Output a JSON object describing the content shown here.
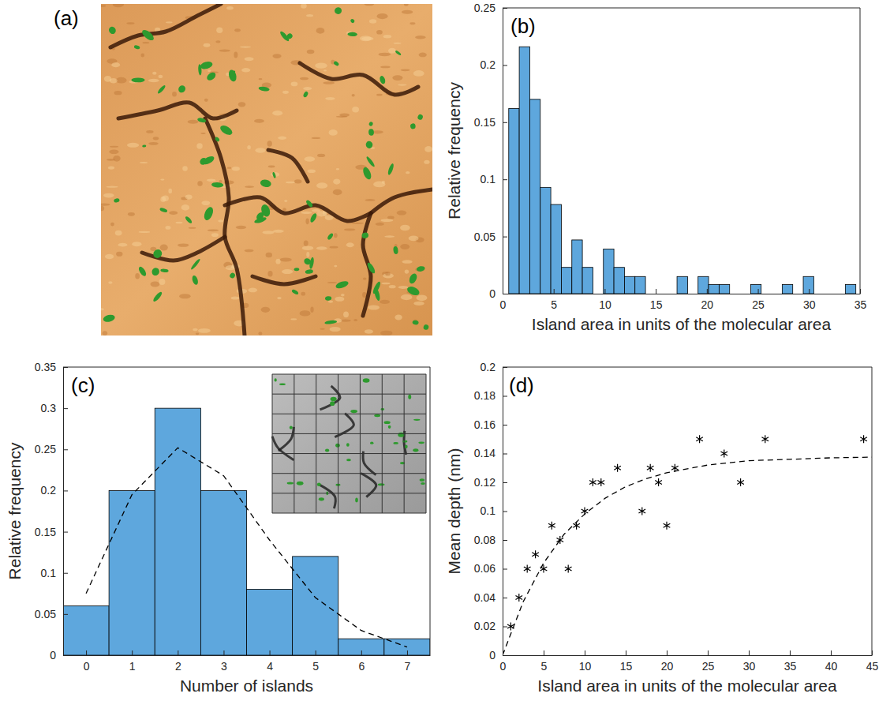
{
  "chart_data": [
    {
      "type": "image",
      "title": "(a)"
    },
    {
      "type": "histogram",
      "title": "(b)",
      "xlabel": "Island area in units of the molecular area",
      "ylabel": "Relative frequency",
      "color": "#5ea7dd",
      "bins": [
        0.6,
        1.63,
        2.66,
        3.69,
        4.72,
        5.75,
        6.78,
        7.81,
        8.84,
        9.87,
        10.9,
        11.93,
        12.96,
        13.99,
        15.02,
        16.05,
        17.08,
        18.11,
        19.14,
        20.17,
        21.2,
        22.23,
        23.26,
        24.29,
        25.32,
        26.35,
        27.38,
        28.41,
        29.44,
        30.47,
        31.5,
        32.53,
        33.56,
        34.59
      ],
      "counts": [
        0.162,
        0.216,
        0.17,
        0.093,
        0.078,
        0.023,
        0.047,
        0.023,
        0,
        0.039,
        0.023,
        0.015,
        0.015,
        0,
        0,
        0,
        0.015,
        0,
        0.015,
        0.008,
        0.008,
        0,
        0,
        0.008,
        0,
        0,
        0.008,
        0,
        0.015,
        0,
        0,
        0,
        0.008
      ],
      "xlim": [
        0,
        35
      ],
      "xticks": [
        0,
        5,
        10,
        15,
        20,
        25,
        30,
        35
      ],
      "ylim": [
        0,
        0.25
      ],
      "yticks": [
        0,
        0.05,
        0.1,
        0.15,
        0.2,
        0.25
      ]
    },
    {
      "type": "bar",
      "title": "(c)",
      "xlabel": "Number of islands",
      "ylabel": "Relative frequency",
      "x": [
        0,
        1,
        2,
        3,
        4,
        5,
        6,
        7
      ],
      "series": [
        {
          "type": "bar",
          "color": "#5ea7dd",
          "values": [
            0.06,
            0.2,
            0.3,
            0.2,
            0.08,
            0.12,
            0.02,
            0.02
          ]
        },
        {
          "type": "line",
          "color": "#000000",
          "line_style": "dashed",
          "values": [
            0.075,
            0.195,
            0.252,
            0.218,
            0.14,
            0.07,
            0.03,
            0.01
          ]
        }
      ],
      "xlim": [
        -0.5,
        7.5
      ],
      "xticks": [
        0,
        1,
        2,
        3,
        4,
        5,
        6,
        7
      ],
      "ylim": [
        0,
        0.35
      ],
      "yticks": [
        0,
        0.05,
        0.1,
        0.15,
        0.2,
        0.25,
        0.3,
        0.35
      ]
    },
    {
      "type": "scatter",
      "title": "(d)",
      "xlabel": "Island area in units of the molecular area",
      "ylabel": "Mean depth (nm)",
      "series": [
        {
          "type": "scatter",
          "marker": "asterisk",
          "color": "#000000",
          "x": [
            1,
            2,
            3,
            4,
            5,
            6,
            7,
            8,
            9,
            10,
            11,
            12,
            14,
            17,
            18,
            19,
            20,
            21,
            24,
            27,
            29,
            32,
            44
          ],
          "values": [
            0.02,
            0.04,
            0.06,
            0.07,
            0.06,
            0.09,
            0.08,
            0.06,
            0.09,
            0.1,
            0.12,
            0.12,
            0.13,
            0.1,
            0.13,
            0.12,
            0.09,
            0.13,
            0.15,
            0.14,
            0.12,
            0.15,
            0.15
          ]
        },
        {
          "type": "line",
          "line_style": "dashed",
          "color": "#000000",
          "x": [
            0,
            2.5,
            5,
            7.5,
            10,
            12.5,
            15,
            17.5,
            20,
            25,
            30,
            35,
            40,
            45
          ],
          "values": [
            0,
            0.037,
            0.064,
            0.084,
            0.098,
            0.109,
            0.117,
            0.1225,
            0.1267,
            0.132,
            0.135,
            0.136,
            0.137,
            0.1375
          ]
        }
      ],
      "xlim": [
        0,
        45
      ],
      "xticks": [
        0,
        5,
        10,
        15,
        20,
        25,
        30,
        35,
        40,
        45
      ],
      "ylim": [
        0,
        0.2
      ],
      "yticks": [
        0,
        0.02,
        0.04,
        0.06,
        0.08,
        0.1,
        0.12,
        0.14,
        0.16,
        0.18,
        0.2
      ]
    }
  ]
}
